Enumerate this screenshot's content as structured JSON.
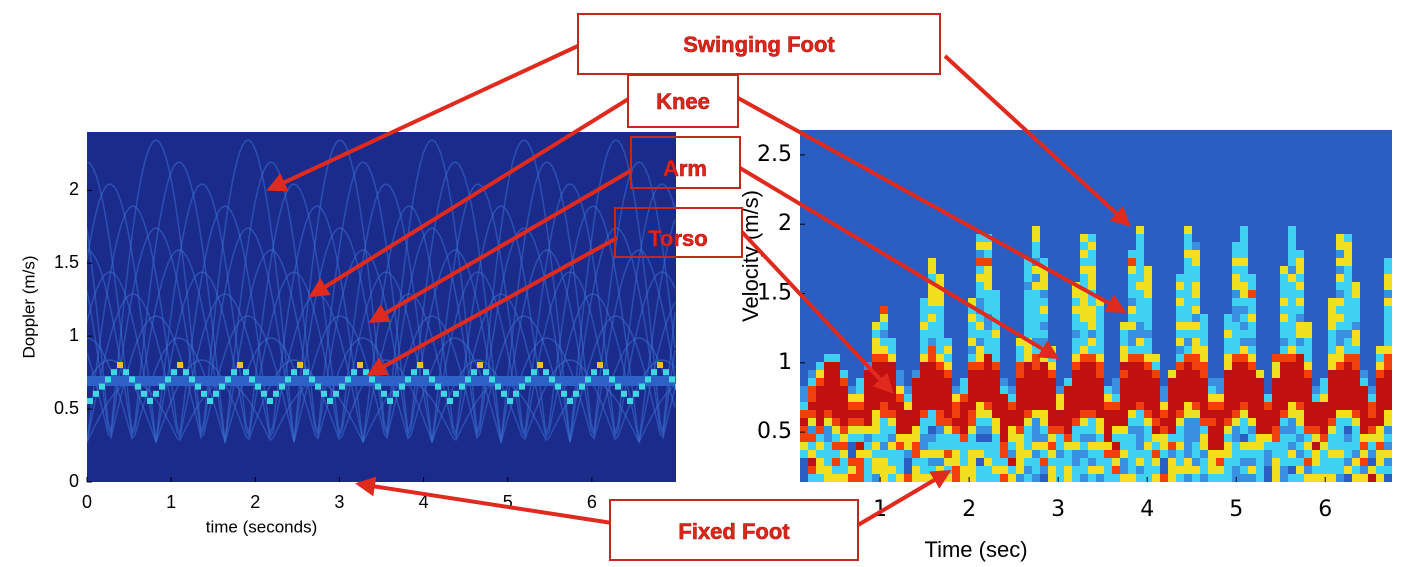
{
  "chart_data": [
    {
      "type": "spectrogram",
      "xlabel": "time (seconds)",
      "ylabel": "Doppler (m/s)",
      "xlim": [
        0,
        7
      ],
      "ylim": [
        0,
        2.4
      ],
      "xticks": [
        0,
        1,
        2,
        3,
        4,
        5,
        6
      ],
      "yticks": [
        0,
        0.5,
        1,
        1.5,
        2
      ]
    },
    {
      "type": "spectrogram",
      "xlabel": "Time (sec)",
      "ylabel": "Velocity (m/s)",
      "xlim": [
        0.1,
        6.75
      ],
      "ylim": [
        0.14,
        2.68
      ],
      "xticks": [
        1,
        2,
        3,
        4,
        5,
        6
      ],
      "yticks": [
        0.5,
        1,
        1.5,
        2,
        2.5
      ]
    }
  ],
  "annotations": [
    "Swinging Foot",
    "Knee",
    "Arm",
    "Torso",
    "Fixed Foot"
  ]
}
